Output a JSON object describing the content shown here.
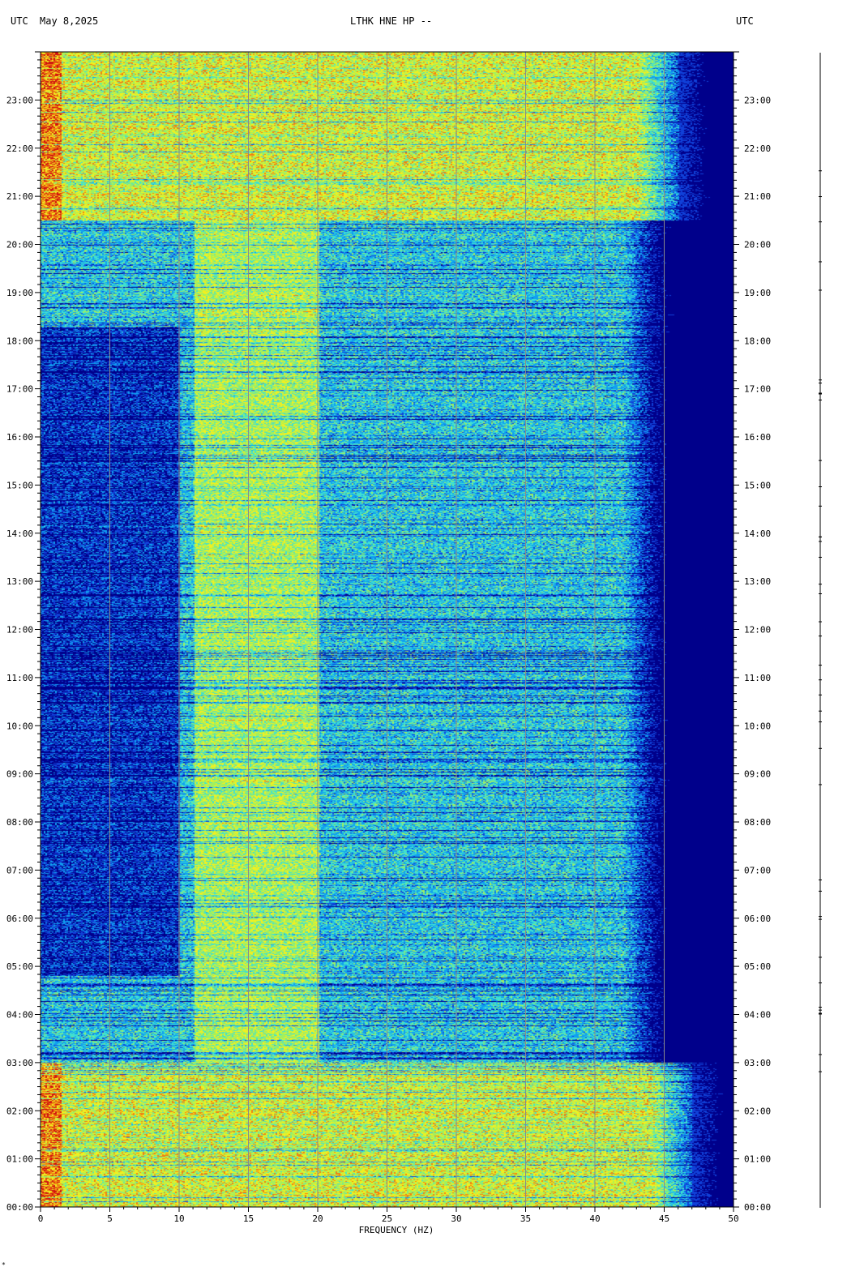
{
  "header": {
    "left_label": "UTC",
    "date": "May 8,2025",
    "station": "LTHK HNE HP --",
    "right_label": "UTC"
  },
  "corner_mark": "*",
  "chart_data": {
    "type": "heatmap",
    "title": "LTHK HNE HP --",
    "xlabel": "FREQUENCY (HZ)",
    "ylabel": "",
    "xlim": [
      0,
      50
    ],
    "ylim_hours": [
      0,
      24
    ],
    "x_major_ticks": [
      0,
      5,
      10,
      15,
      20,
      25,
      30,
      35,
      40,
      45,
      50
    ],
    "x_tick_labels": [
      "0",
      "5",
      "10",
      "15",
      "20",
      "25",
      "30",
      "35",
      "40",
      "45",
      "50"
    ],
    "x_gridlines": [
      5,
      10,
      15,
      20,
      25,
      30,
      35,
      40,
      45
    ],
    "y_tick_hours": [
      0,
      1,
      2,
      3,
      4,
      5,
      6,
      7,
      8,
      9,
      10,
      11,
      12,
      13,
      14,
      15,
      16,
      17,
      18,
      19,
      20,
      21,
      22,
      23
    ],
    "y_tick_labels": [
      "00:00",
      "01:00",
      "02:00",
      "03:00",
      "04:00",
      "05:00",
      "06:00",
      "07:00",
      "08:00",
      "09:00",
      "10:00",
      "11:00",
      "12:00",
      "13:00",
      "14:00",
      "15:00",
      "16:00",
      "17:00",
      "18:00",
      "19:00",
      "20:00",
      "21:00",
      "22:00",
      "23:00"
    ],
    "grid": true,
    "colormap": [
      "#00008b",
      "#1040d8",
      "#10a0f0",
      "#40e0d0",
      "#a0f060",
      "#f0f020",
      "#f08010",
      "#d01010"
    ],
    "bands": [
      {
        "start_hour": 0.0,
        "end_hour": 3.0,
        "level": "high",
        "rolloff_hz": 44
      },
      {
        "start_hour": 3.0,
        "end_hour": 20.5,
        "level": "low",
        "rolloff_hz": 42
      },
      {
        "start_hour": 20.5,
        "end_hour": 24.0,
        "level": "high",
        "rolloff_hz": 43
      }
    ],
    "energy_band_hz": [
      11,
      20
    ],
    "dark_low_freq_hours": [
      4.8,
      18.3
    ]
  }
}
